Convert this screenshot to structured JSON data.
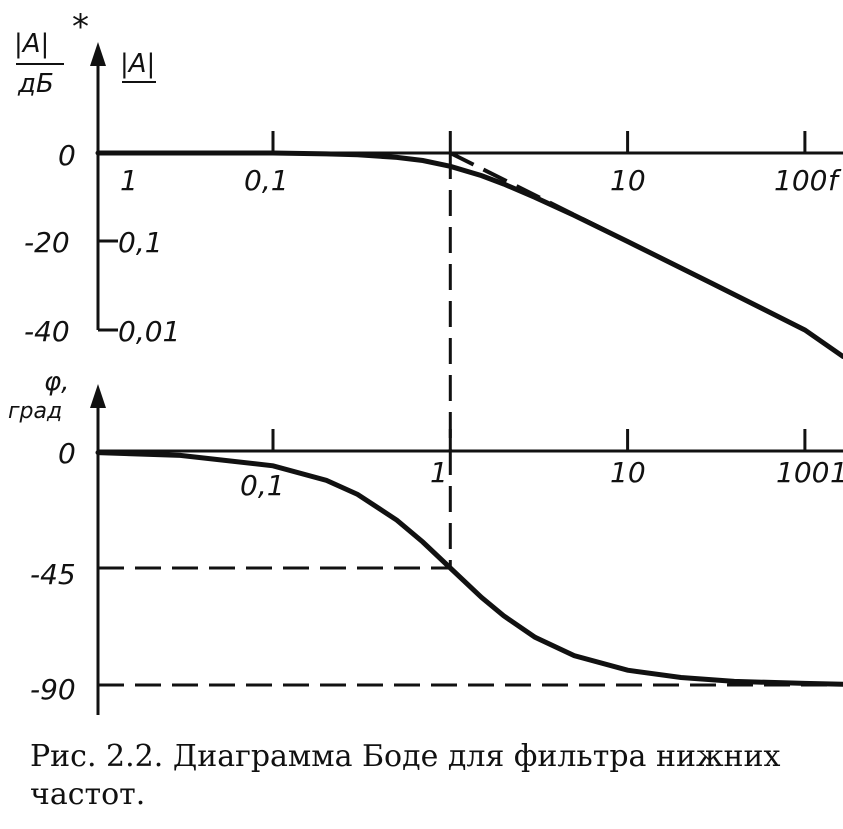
{
  "caption": "Рис. 2.2. Диаграмма Боде для фильтра нижних частот.",
  "colors": {
    "ink": "#111111",
    "paper": "#ffffff"
  },
  "chart_data": [
    {
      "type": "line",
      "title": "",
      "y_label_db": "|A|, дБ",
      "y_label_db_top": "|A|",
      "y_label_db_bottom": "дБ",
      "y_label_ratio": "|A|",
      "marker": "*",
      "x_label": "f",
      "x_scale": "log",
      "x_ticks": [
        "1",
        "0,1",
        "10",
        "100"
      ],
      "y_ticks_db": [
        "0",
        "-20",
        "-40"
      ],
      "y_ticks_ratio": [
        "0,1",
        "0,01"
      ],
      "xlim": [
        0.01,
        200
      ],
      "ylim": [
        -45,
        5
      ],
      "series": [
        {
          "style": "solid",
          "x": [
            0.01,
            0.1,
            0.2,
            0.3,
            0.5,
            0.7,
            1,
            1.5,
            2,
            3,
            5,
            10,
            30,
            100,
            200
          ],
          "y": [
            0,
            0,
            -0.2,
            -0.4,
            -1.0,
            -1.7,
            -3,
            -5.1,
            -7,
            -10,
            -14.1,
            -20,
            -29.5,
            -40,
            -46
          ]
        },
        {
          "style": "dashed",
          "x": [
            1,
            10,
            100,
            200
          ],
          "y": [
            0,
            -20,
            -40,
            -46
          ]
        }
      ],
      "guides": [
        {
          "style": "dashed",
          "x": 1
        }
      ]
    },
    {
      "type": "line",
      "title": "",
      "y_label_top": "φ,",
      "y_label_bottom": "град",
      "x_scale": "log",
      "x_ticks": [
        "0,1",
        "1",
        "10",
        "100",
        "1"
      ],
      "y_ticks": [
        "0",
        "-45",
        "-90"
      ],
      "xlim": [
        0.01,
        200
      ],
      "ylim": [
        -95,
        5
      ],
      "series": [
        {
          "style": "solid",
          "x": [
            0.01,
            0.03,
            0.1,
            0.2,
            0.3,
            0.5,
            0.7,
            1,
            1.5,
            2,
            3,
            5,
            10,
            20,
            40,
            100,
            200
          ],
          "y": [
            -0.6,
            -1.7,
            -5.7,
            -11.3,
            -16.7,
            -26.6,
            -35,
            -45,
            -56.3,
            -63.4,
            -71.6,
            -78.7,
            -84.3,
            -87.1,
            -88.6,
            -89.4,
            -89.7
          ]
        }
      ],
      "guides": [
        {
          "style": "dashed",
          "y": -45,
          "x_to": 1
        },
        {
          "style": "dashed",
          "y": -90
        }
      ]
    }
  ]
}
